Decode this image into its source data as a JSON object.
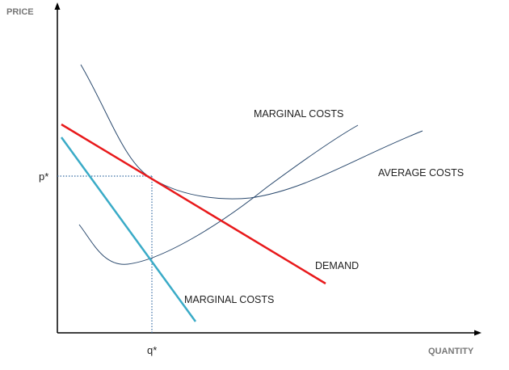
{
  "axes": {
    "y_label": "PRICE",
    "x_label": "QUANTITY",
    "y_marker": "p*",
    "x_marker": "q*"
  },
  "curves": {
    "mc_upper_label": "MARGINAL COSTS",
    "avg_costs_label": "AVERAGE COSTS",
    "demand_label": "DEMAND",
    "mc_lower_label": "MARGINAL COSTS"
  },
  "colors": {
    "axis": "#000000",
    "cost_curves": "#2b4a6e",
    "demand": "#e8191b",
    "marginal_revenue": "#3aabc7",
    "guide_lines": "#3a6ea5"
  }
}
